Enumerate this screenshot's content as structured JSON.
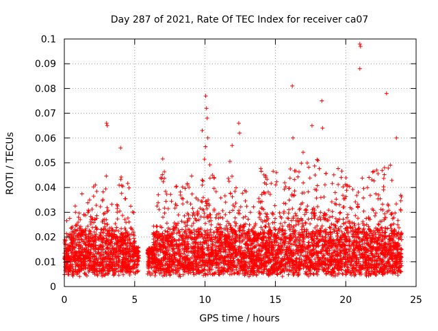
{
  "chart_data": {
    "type": "scatter",
    "title": "Day 287 of 2021, Rate Of TEC Index for receiver ca07",
    "xlabel": "GPS time / hours",
    "ylabel": "ROTI / TECUs",
    "xlim": [
      0,
      25
    ],
    "ylim": [
      0,
      0.1
    ],
    "x_ticks": [
      0,
      5,
      10,
      15,
      20,
      25
    ],
    "y_ticks": [
      0,
      0.01,
      0.02,
      0.03,
      0.04,
      0.05,
      0.06,
      0.07,
      0.08,
      0.09,
      0.1
    ],
    "x_tick_labels": [
      "0",
      "5",
      "10",
      "15",
      "20",
      "25"
    ],
    "y_tick_labels": [
      "0",
      "0.01",
      "0.02",
      "0.03",
      "0.04",
      "0.05",
      "0.06",
      "0.07",
      "0.08",
      "0.09",
      "0.1"
    ],
    "grid": true,
    "marker": "+",
    "color": "#ff0000",
    "data_gap_hours": [
      5.3,
      5.9
    ],
    "envelope_hours": [
      0,
      0.5,
      1,
      1.5,
      2,
      2.5,
      3,
      3.5,
      4,
      4.5,
      5,
      5.5,
      6,
      6.5,
      7,
      7.5,
      8,
      8.5,
      9,
      9.5,
      10,
      10.5,
      11,
      11.5,
      12,
      12.5,
      13,
      13.5,
      14,
      14.5,
      15,
      15.5,
      16,
      16.5,
      17,
      17.5,
      18,
      18.5,
      19,
      19.5,
      20,
      20.5,
      21,
      21.5,
      22,
      22.5,
      23,
      23.5,
      24
    ],
    "envelope_max_roti": [
      0.026,
      0.028,
      0.045,
      0.033,
      0.044,
      0.038,
      0.052,
      0.036,
      0.048,
      0.042,
      0.032,
      0.012,
      0.03,
      0.034,
      0.052,
      0.038,
      0.042,
      0.04,
      0.046,
      0.05,
      0.058,
      0.046,
      0.044,
      0.04,
      0.06,
      0.038,
      0.043,
      0.038,
      0.052,
      0.044,
      0.048,
      0.046,
      0.052,
      0.05,
      0.056,
      0.046,
      0.054,
      0.046,
      0.05,
      0.048,
      0.046,
      0.045,
      0.044,
      0.044,
      0.052,
      0.05,
      0.052,
      0.046,
      0.036
    ],
    "typical_median_roti": 0.013,
    "outliers": [
      {
        "x": 3.0,
        "y": 0.066
      },
      {
        "x": 3.05,
        "y": 0.065
      },
      {
        "x": 4.0,
        "y": 0.056
      },
      {
        "x": 9.8,
        "y": 0.063
      },
      {
        "x": 10.05,
        "y": 0.077
      },
      {
        "x": 10.1,
        "y": 0.072
      },
      {
        "x": 10.15,
        "y": 0.068
      },
      {
        "x": 10.2,
        "y": 0.06
      },
      {
        "x": 12.4,
        "y": 0.066
      },
      {
        "x": 12.45,
        "y": 0.062
      },
      {
        "x": 16.2,
        "y": 0.081
      },
      {
        "x": 16.25,
        "y": 0.06
      },
      {
        "x": 17.6,
        "y": 0.065
      },
      {
        "x": 18.3,
        "y": 0.075
      },
      {
        "x": 18.35,
        "y": 0.064
      },
      {
        "x": 21.0,
        "y": 0.098
      },
      {
        "x": 21.05,
        "y": 0.097
      },
      {
        "x": 21.0,
        "y": 0.088
      },
      {
        "x": 22.9,
        "y": 0.078
      },
      {
        "x": 23.6,
        "y": 0.06
      }
    ]
  }
}
